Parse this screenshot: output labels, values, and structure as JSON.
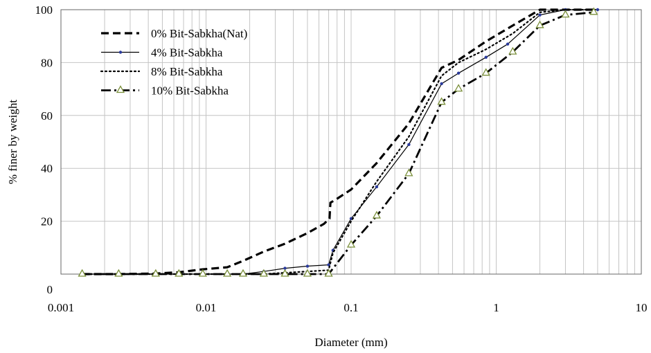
{
  "chart_data": {
    "type": "line",
    "xlabel": "Diameter (mm)",
    "ylabel": "% finer by weight",
    "xscale": "log",
    "xlim": [
      0.001,
      10
    ],
    "ylim": [
      0,
      100
    ],
    "x_ticks": [
      {
        "value": 0.001,
        "label": "0.001"
      },
      {
        "value": 0.01,
        "label": "0.01"
      },
      {
        "value": 0.1,
        "label": "0.1"
      },
      {
        "value": 1,
        "label": "1"
      },
      {
        "value": 10,
        "label": "10"
      }
    ],
    "y_ticks": [
      {
        "value": 0,
        "label": "0"
      },
      {
        "value": 20,
        "label": "20"
      },
      {
        "value": 40,
        "label": "40"
      },
      {
        "value": 60,
        "label": "60"
      },
      {
        "value": 80,
        "label": "80"
      },
      {
        "value": 100,
        "label": "100"
      }
    ],
    "grid": true,
    "legend_position": "top-left",
    "series": [
      {
        "name": "0% Bit-Sabkha(Nat)",
        "line_style": "dashed",
        "marker": "none",
        "color": "#000000",
        "points": [
          [
            0.0014,
            0
          ],
          [
            0.0025,
            0
          ],
          [
            0.0045,
            0.2
          ],
          [
            0.0065,
            0.7
          ],
          [
            0.0095,
            1.8
          ],
          [
            0.014,
            2.6
          ],
          [
            0.018,
            5
          ],
          [
            0.025,
            8.5
          ],
          [
            0.035,
            11.5
          ],
          [
            0.05,
            15.5
          ],
          [
            0.065,
            19
          ],
          [
            0.071,
            21
          ],
          [
            0.072,
            27
          ],
          [
            0.08,
            28.5
          ],
          [
            0.1,
            32
          ],
          [
            0.15,
            42
          ],
          [
            0.25,
            57
          ],
          [
            0.42,
            78
          ],
          [
            0.55,
            81
          ],
          [
            0.85,
            88
          ],
          [
            1.3,
            94
          ],
          [
            2,
            100
          ],
          [
            3,
            100
          ],
          [
            5,
            100
          ]
        ]
      },
      {
        "name": "4% Bit-Sabkha",
        "line_style": "solid",
        "marker": "dot",
        "color": "#000000",
        "points": [
          [
            0.0014,
            0
          ],
          [
            0.0025,
            0
          ],
          [
            0.0045,
            0
          ],
          [
            0.0065,
            0
          ],
          [
            0.0095,
            0
          ],
          [
            0.014,
            0
          ],
          [
            0.018,
            0
          ],
          [
            0.025,
            1
          ],
          [
            0.035,
            2.2
          ],
          [
            0.05,
            3
          ],
          [
            0.07,
            3.5
          ],
          [
            0.075,
            9
          ],
          [
            0.1,
            21
          ],
          [
            0.15,
            33
          ],
          [
            0.25,
            49
          ],
          [
            0.42,
            72
          ],
          [
            0.55,
            76
          ],
          [
            0.85,
            82
          ],
          [
            1.2,
            87
          ],
          [
            2,
            98
          ],
          [
            3,
            100
          ],
          [
            5,
            100
          ]
        ]
      },
      {
        "name": "8% Bit-Sabkha",
        "line_style": "dotted",
        "marker": "none",
        "color": "#000000",
        "points": [
          [
            0.0014,
            0
          ],
          [
            0.0025,
            0
          ],
          [
            0.0045,
            0
          ],
          [
            0.0065,
            0
          ],
          [
            0.0095,
            0
          ],
          [
            0.014,
            0
          ],
          [
            0.018,
            0
          ],
          [
            0.025,
            0
          ],
          [
            0.035,
            0.5
          ],
          [
            0.05,
            1
          ],
          [
            0.07,
            1.5
          ],
          [
            0.075,
            8
          ],
          [
            0.1,
            20
          ],
          [
            0.15,
            35
          ],
          [
            0.25,
            52
          ],
          [
            0.42,
            75
          ],
          [
            0.55,
            80
          ],
          [
            0.85,
            85
          ],
          [
            1.3,
            91
          ],
          [
            2,
            99
          ],
          [
            3,
            100
          ],
          [
            5,
            100
          ]
        ]
      },
      {
        "name": "10% Bit-Sabkha",
        "line_style": "dashdot",
        "marker": "triangle",
        "color": "#000000",
        "points": [
          [
            0.0014,
            0
          ],
          [
            0.0025,
            0
          ],
          [
            0.0045,
            0
          ],
          [
            0.0065,
            0
          ],
          [
            0.0095,
            0
          ],
          [
            0.014,
            0
          ],
          [
            0.018,
            0
          ],
          [
            0.025,
            0
          ],
          [
            0.035,
            0
          ],
          [
            0.05,
            0
          ],
          [
            0.07,
            0
          ],
          [
            0.1,
            11
          ],
          [
            0.15,
            22
          ],
          [
            0.25,
            38
          ],
          [
            0.42,
            65
          ],
          [
            0.55,
            70
          ],
          [
            0.85,
            76
          ],
          [
            1.3,
            84
          ],
          [
            2,
            94
          ],
          [
            3,
            98
          ],
          [
            4.7,
            99
          ]
        ]
      }
    ]
  }
}
